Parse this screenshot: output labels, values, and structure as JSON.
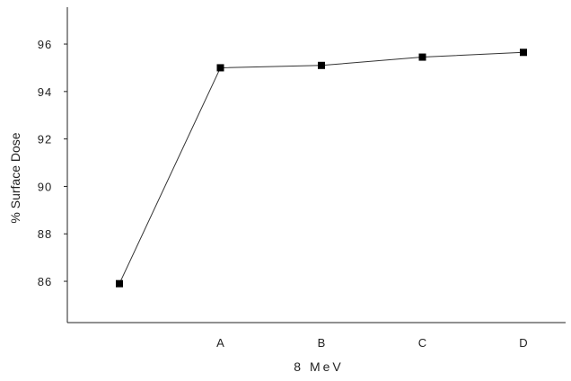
{
  "chart_data": {
    "type": "line",
    "title": "",
    "xlabel": "8 MeV",
    "ylabel": "% Surface Dose",
    "categories": [
      "",
      "A",
      "B",
      "C",
      "D"
    ],
    "series": [
      {
        "values": [
          85.9,
          95.0,
          95.1,
          95.45,
          95.65
        ]
      }
    ],
    "ylim": [
      84.6,
      97.1
    ],
    "yticks": [
      86,
      88,
      90,
      92,
      94,
      96
    ],
    "grid": false,
    "legend": "none",
    "line_color": "#333333",
    "marker_color": "#000000",
    "marker_shape": "square"
  }
}
